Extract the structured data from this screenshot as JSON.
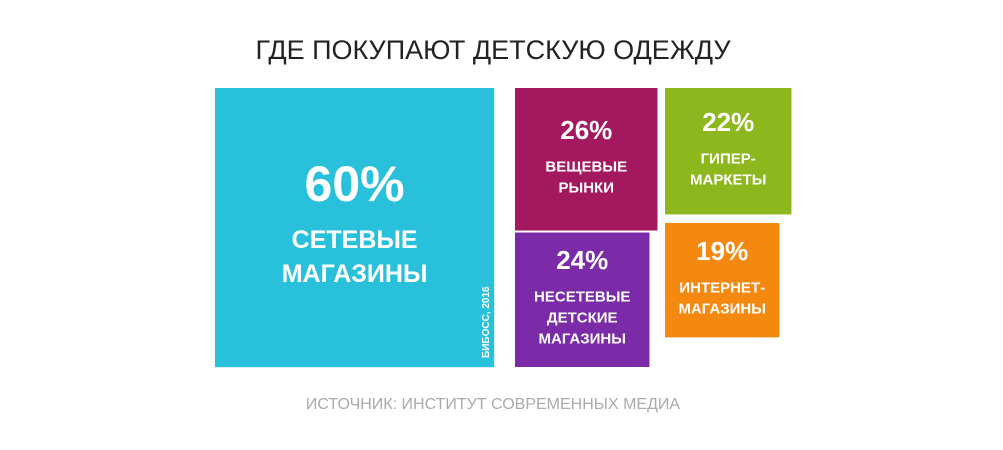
{
  "chart_data": {
    "type": "squares",
    "title": "ГДЕ ПОКУПАЮТ ДЕТСКУЮ ОДЕЖДУ",
    "categories": [
      [
        "СЕТЕВЫЕ",
        "МАГАЗИНЫ"
      ],
      [
        "ВЕЩЕВЫЕ",
        "РЫНКИ"
      ],
      [
        "ГИПЕР-",
        "МАРКЕТЫ"
      ],
      [
        "НЕСЕТЕВЫЕ",
        "ДЕТСКИЕ",
        "МАГАЗИНЫ"
      ],
      [
        "ИНТЕРНЕТ-",
        "МАГАЗИНЫ"
      ]
    ],
    "values": [
      60,
      26,
      22,
      24,
      19
    ],
    "value_labels": [
      "60%",
      "26%",
      "22%",
      "24%",
      "19%"
    ],
    "colors": [
      "#29c0dc",
      "#a3185e",
      "#8cb81e",
      "#7b2aa8",
      "#f5890f"
    ],
    "watermark": "БИБОСС, 2016",
    "source": "ИСТОЧНИК: ИНСТИТУТ СОВРЕМЕННЫХ МЕДИА"
  }
}
